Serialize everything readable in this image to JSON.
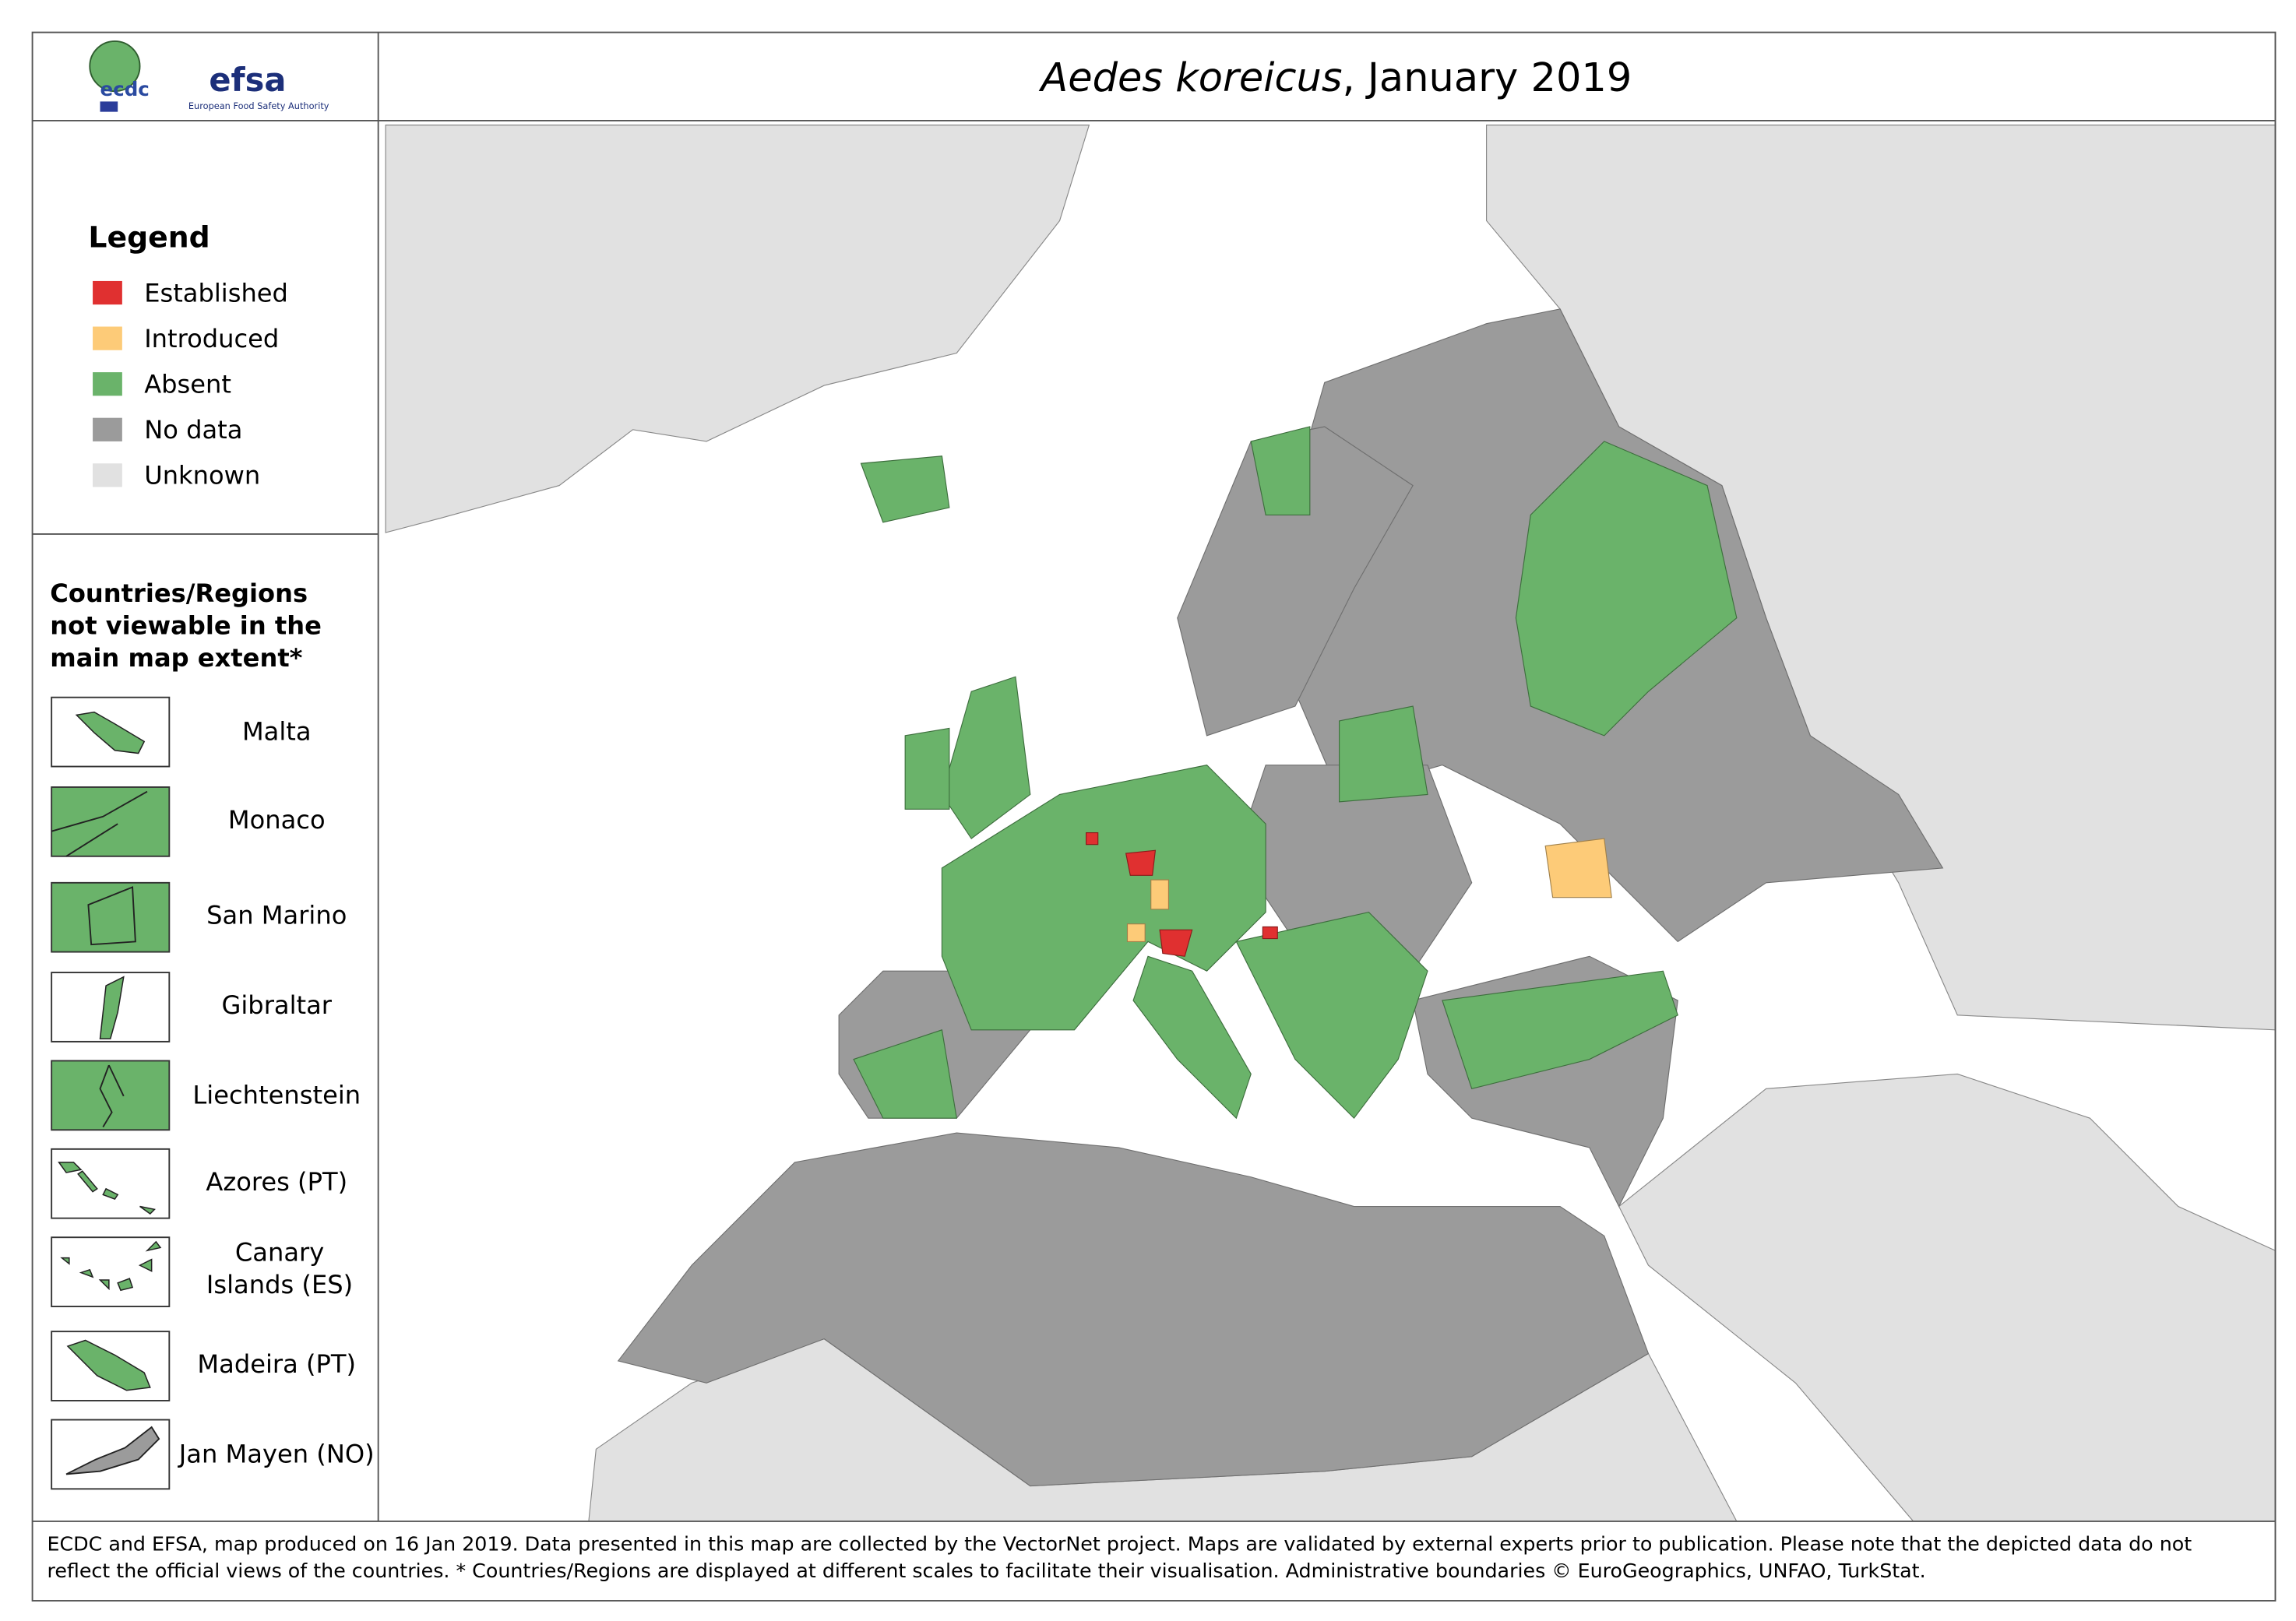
{
  "header": {
    "title_species": "Aedes koreicus",
    "title_rest": ", January 2019",
    "logo_ecdc": "ecdc",
    "logo_efsa": "efsa",
    "logo_efsa_caption": "European Food Safety Authority"
  },
  "legend": {
    "title": "Legend",
    "items": [
      {
        "label": "Established",
        "color": "#e03030"
      },
      {
        "label": "Introduced",
        "color": "#fdcb78"
      },
      {
        "label": "Absent",
        "color": "#6ab36a"
      },
      {
        "label": "No data",
        "color": "#9b9b9b"
      },
      {
        "label": "Unknown",
        "color": "#e1e1e1"
      }
    ]
  },
  "insets": {
    "title": "Countries/Regions not viewable in the main map extent*",
    "items": [
      "Malta",
      "Monaco",
      "San Marino",
      "Gibraltar",
      "Liechtenstein",
      "Azores (PT)",
      "Canary Islands (ES)",
      "Madeira (PT)",
      "Jan Mayen (NO)"
    ]
  },
  "footer": "ECDC and EFSA, map produced on 16 Jan 2019. Data presented in this map are collected by the VectorNet project. Maps are validated by external experts prior to publication. Please note that the depicted data do not reflect the official views of the countries. * Countries/Regions are displayed at different scales to facilitate their visualisation. Administrative boundaries © EuroGeographics, UNFAO, TurkStat."
}
